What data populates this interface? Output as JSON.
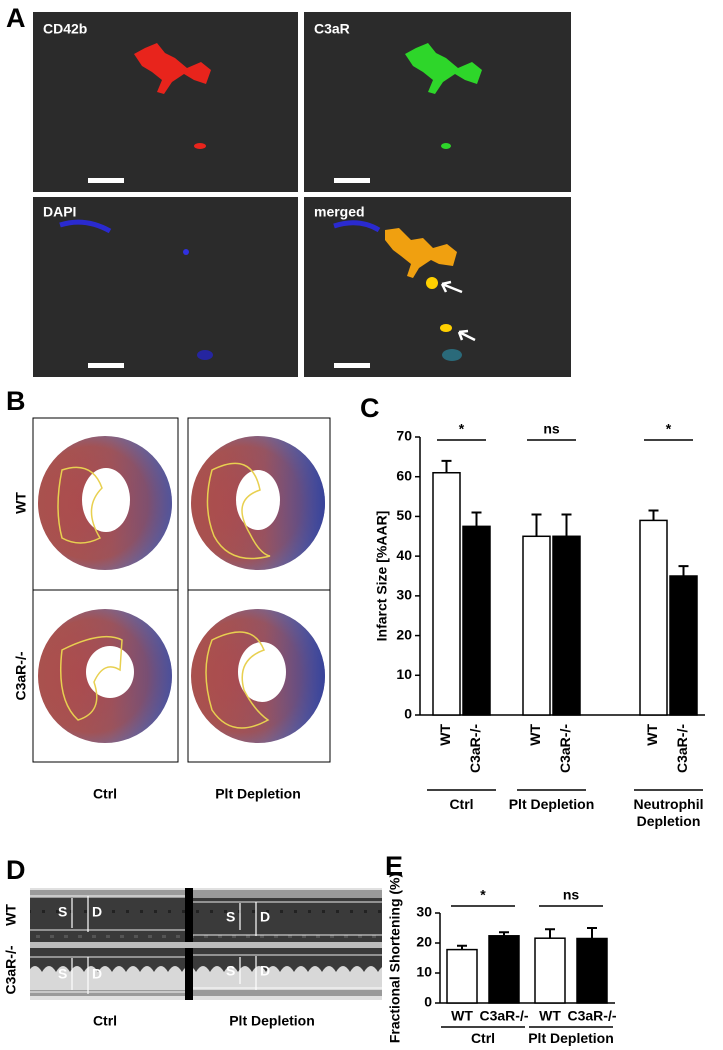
{
  "panels": {
    "A": {
      "label": "A",
      "images": [
        "CD42b",
        "C3aR",
        "DAPI",
        "merged"
      ]
    },
    "B": {
      "label": "B",
      "rows": [
        "WT",
        "C3aR-/-"
      ],
      "columns": [
        "Ctrl",
        "Plt Depletion"
      ]
    },
    "D": {
      "label": "D",
      "rows": [
        "WT",
        "C3aR-/-"
      ],
      "columns": [
        "Ctrl",
        "Plt Depletion"
      ],
      "markers": [
        "S",
        "D"
      ]
    }
  },
  "chart_data": [
    {
      "type": "bar",
      "panel_label": "C",
      "y_label": "Infarct Size [%AAR]",
      "ylim": [
        0,
        70
      ],
      "yticks": [
        0,
        10,
        20,
        30,
        40,
        50,
        60,
        70
      ],
      "colors": [
        "#ffffff",
        "#000000"
      ],
      "groups": [
        {
          "label": "Ctrl",
          "categories": [
            "WT",
            "C3aR-/-"
          ],
          "values": [
            61,
            47.5
          ],
          "errors": [
            3,
            3.5
          ],
          "significance": "*"
        },
        {
          "label": "Plt Depletion",
          "categories": [
            "WT",
            "C3aR-/-"
          ],
          "values": [
            45,
            45
          ],
          "errors": [
            5.5,
            5.5
          ],
          "significance": "ns"
        },
        {
          "label": "Neutrophil Depletion",
          "categories": [
            "WT",
            "C3aR-/-"
          ],
          "values": [
            49,
            35
          ],
          "errors": [
            2.5,
            2.5
          ],
          "significance": "*"
        }
      ]
    },
    {
      "type": "bar",
      "panel_label": "E",
      "y_label": "Fractional Shortening (%)",
      "ylim": [
        0,
        30
      ],
      "yticks": [
        0,
        10,
        20,
        30
      ],
      "colors": [
        "#ffffff",
        "#000000"
      ],
      "groups": [
        {
          "label": "Ctrl",
          "categories": [
            "WT",
            "C3aR-/-"
          ],
          "values": [
            17.8,
            22.4
          ],
          "errors": [
            1.3,
            1.2
          ],
          "significance": "*"
        },
        {
          "label": "Plt Depletion",
          "categories": [
            "WT",
            "C3aR-/-"
          ],
          "values": [
            21.6,
            21.5
          ],
          "errors": [
            3,
            3.5
          ],
          "significance": "ns"
        }
      ]
    }
  ]
}
